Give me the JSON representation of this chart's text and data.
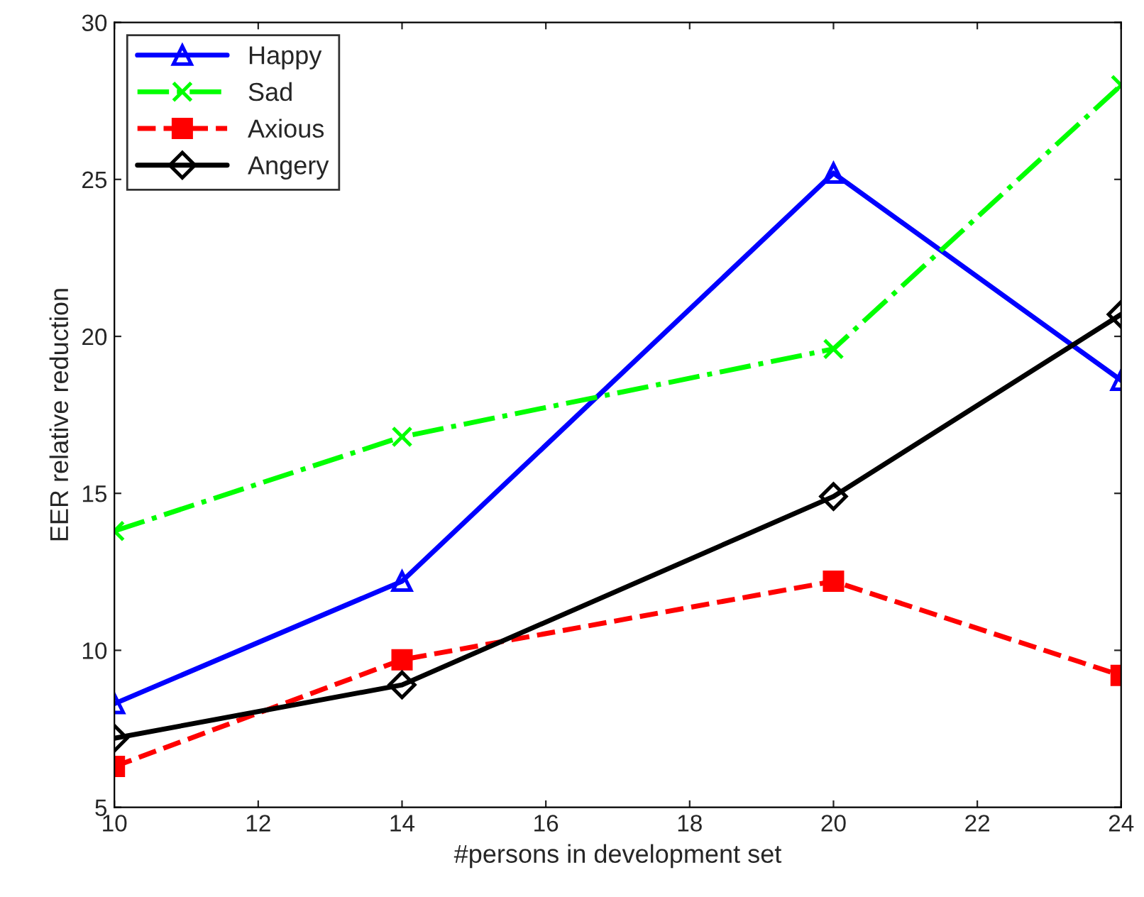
{
  "chart_data": {
    "type": "line",
    "xlabel": "#persons in development set",
    "ylabel": "EER relative reduction",
    "x": [
      10,
      14,
      20,
      24
    ],
    "series": [
      {
        "name": "Happy",
        "color": "#0000ff",
        "values": [
          8.3,
          12.2,
          25.2,
          18.6
        ],
        "marker": "triangle",
        "line_style": "solid"
      },
      {
        "name": "Sad",
        "color": "#00ff00",
        "values": [
          13.8,
          16.8,
          19.6,
          28.0
        ],
        "marker": "cross",
        "line_style": "dashdot"
      },
      {
        "name": "Axious",
        "color": "#ff0000",
        "values": [
          6.3,
          9.7,
          12.2,
          9.2
        ],
        "marker": "square",
        "line_style": "dashed"
      },
      {
        "name": "Angery",
        "color": "#000000",
        "values": [
          7.2,
          8.9,
          14.9,
          20.7
        ],
        "marker": "diamond",
        "line_style": "solid"
      }
    ],
    "xlim": [
      10,
      24
    ],
    "xticks": [
      10,
      12,
      14,
      16,
      18,
      20,
      22,
      24
    ],
    "ylim": [
      5,
      30
    ],
    "yticks": [
      5,
      10,
      15,
      20,
      25,
      30
    ],
    "grid": false,
    "legend": "top left"
  }
}
